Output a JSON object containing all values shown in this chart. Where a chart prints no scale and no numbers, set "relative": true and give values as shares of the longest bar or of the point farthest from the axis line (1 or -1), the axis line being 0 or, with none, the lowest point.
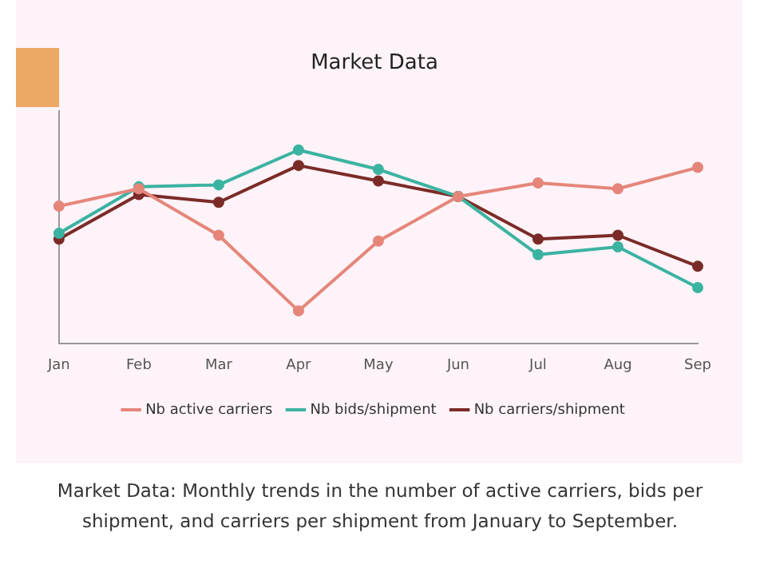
{
  "chart_data": {
    "type": "line",
    "title": "Market Data",
    "categories": [
      "Jan",
      "Feb",
      "Mar",
      "Apr",
      "May",
      "Jun",
      "Jul",
      "Aug",
      "Sep"
    ],
    "series": [
      {
        "name": "Nb active carriers",
        "color": "#e5867a",
        "values": [
          0.71,
          0.8,
          0.56,
          0.17,
          0.53,
          0.76,
          0.83,
          0.8,
          0.91
        ]
      },
      {
        "name": "Nb bids/shipment",
        "color": "#3bb3a1",
        "values": [
          0.57,
          0.81,
          0.82,
          1,
          0.9,
          0.76,
          0.46,
          0.5,
          0.29
        ]
      },
      {
        "name": "Nb carriers/shipment",
        "color": "#7b2b27",
        "values": [
          0.54,
          0.77,
          0.73,
          0.92,
          0.84,
          0.76,
          0.54,
          0.56,
          0.4
        ]
      }
    ],
    "relative": true,
    "marker": "circle",
    "legend": "bottom",
    "grid": false,
    "annotations": [
      "Market Data: Monthly trends in the number of active carriers, bids per shipment, and carriers per shipment from January to September."
    ]
  }
}
